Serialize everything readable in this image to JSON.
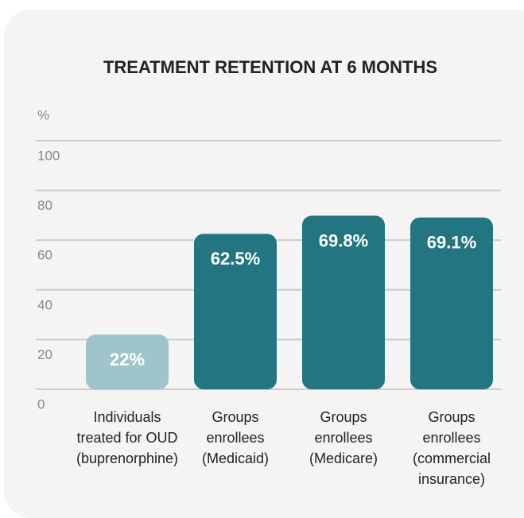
{
  "chart_data": {
    "type": "bar",
    "title": "TREATMENT RETENTION AT 6 MONTHS",
    "y_label": "%",
    "categories": [
      "Individuals\ntreated for OUD\n(buprenorphine)",
      "Groups\nenrollees\n(Medicaid)",
      "Groups\nenrollees\n(Medicare)",
      "Groups\nenrollees\n(commercial\ninsurance)"
    ],
    "values": [
      22,
      62.5,
      69.8,
      69.1
    ],
    "value_labels": [
      "22%",
      "62.5%",
      "69.8%",
      "69.1%"
    ],
    "colors": [
      "#9fc5ca",
      "#237582",
      "#237582",
      "#237582"
    ],
    "ylim": [
      0,
      100
    ],
    "yticks": [
      0,
      20,
      40,
      60,
      80,
      100
    ],
    "grid": true
  }
}
